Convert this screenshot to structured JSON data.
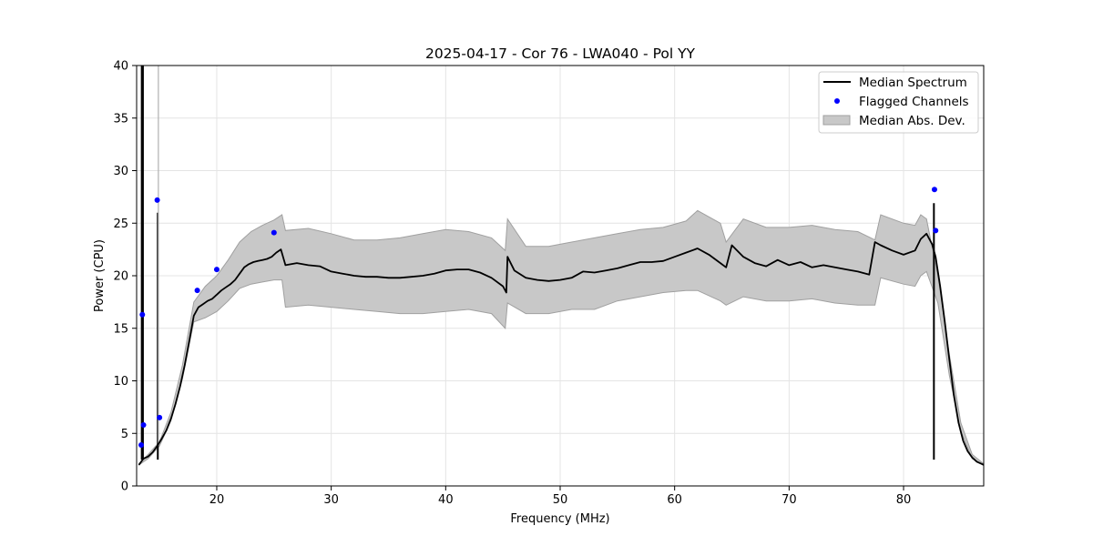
{
  "chart_data": {
    "type": "line",
    "title": "2025-04-17 - Cor 76 - LWA040 - Pol YY",
    "xlabel": "Frequency (MHz)",
    "ylabel": "Power (CPU)",
    "xlim": [
      13.0,
      87.0
    ],
    "ylim": [
      0,
      40
    ],
    "xticks": [
      20,
      30,
      40,
      50,
      60,
      70,
      80
    ],
    "yticks": [
      0,
      5,
      10,
      15,
      20,
      25,
      30,
      35,
      40
    ],
    "grid": true,
    "legend_position": "top-right",
    "colors": {
      "median": "#000000",
      "flagged": "#0000ff",
      "mad_fill": "#c8c8c8",
      "mad_edge": "#a0a0a0"
    },
    "series": [
      {
        "name": "Median Spectrum",
        "x": [
          13.2,
          13.4,
          13.6,
          14.0,
          14.4,
          14.8,
          15.2,
          15.6,
          16.0,
          16.4,
          16.8,
          17.2,
          17.6,
          18.0,
          18.4,
          18.8,
          19.2,
          19.6,
          20.0,
          20.4,
          20.8,
          21.2,
          21.6,
          22.0,
          22.4,
          22.8,
          23.2,
          23.6,
          24.0,
          24.4,
          24.8,
          25.2,
          25.6,
          26.0,
          27.0,
          28.0,
          29.0,
          30.0,
          31.0,
          32.0,
          33.0,
          34.0,
          35.0,
          36.0,
          37.0,
          38.0,
          39.0,
          40.0,
          41.0,
          42.0,
          43.0,
          44.0,
          45.0,
          45.3,
          45.4,
          46.0,
          47.0,
          48.0,
          49.0,
          50.0,
          51.0,
          52.0,
          53.0,
          54.0,
          55.0,
          56.0,
          57.0,
          58.0,
          59.0,
          60.0,
          61.0,
          62.0,
          63.0,
          64.0,
          64.5,
          65.0,
          66.0,
          67.0,
          68.0,
          69.0,
          70.0,
          71.0,
          72.0,
          73.0,
          74.0,
          75.0,
          76.0,
          77.0,
          77.5,
          78.0,
          79.0,
          80.0,
          81.0,
          81.5,
          82.0,
          82.5,
          82.8,
          83.2,
          83.6,
          84.0,
          84.4,
          84.8,
          85.2,
          85.6,
          86.0,
          86.4,
          86.8,
          87.0
        ],
        "y": [
          2.0,
          2.3,
          2.6,
          2.8,
          3.2,
          3.8,
          4.5,
          5.3,
          6.4,
          7.8,
          9.5,
          11.5,
          13.8,
          16.2,
          17.0,
          17.3,
          17.6,
          17.8,
          18.2,
          18.6,
          18.9,
          19.2,
          19.6,
          20.2,
          20.8,
          21.1,
          21.3,
          21.4,
          21.5,
          21.6,
          21.8,
          22.2,
          22.5,
          21.0,
          21.2,
          21.0,
          20.9,
          20.4,
          20.2,
          20.0,
          19.9,
          19.9,
          19.8,
          19.8,
          19.9,
          20.0,
          20.2,
          20.5,
          20.6,
          20.6,
          20.3,
          19.8,
          19.0,
          18.4,
          21.8,
          20.5,
          19.8,
          19.6,
          19.5,
          19.6,
          19.8,
          20.4,
          20.3,
          20.5,
          20.7,
          21.0,
          21.3,
          21.3,
          21.4,
          21.8,
          22.2,
          22.6,
          22.0,
          21.2,
          20.8,
          22.9,
          21.8,
          21.2,
          20.9,
          21.5,
          21.0,
          21.3,
          20.8,
          21.0,
          20.8,
          20.6,
          20.4,
          20.1,
          23.2,
          22.9,
          22.4,
          22.0,
          22.4,
          23.5,
          24.0,
          23.0,
          21.8,
          19.0,
          15.6,
          12.0,
          8.6,
          6.0,
          4.3,
          3.3,
          2.7,
          2.3,
          2.1,
          2.0
        ]
      },
      {
        "name": "Flagged Channels",
        "x": [
          13.4,
          13.5,
          13.6,
          14.8,
          15.0,
          18.3,
          20.0,
          25.0,
          82.7,
          82.8
        ],
        "y": [
          3.9,
          16.3,
          5.8,
          27.2,
          6.5,
          18.6,
          20.6,
          24.1,
          28.2,
          24.3
        ]
      },
      {
        "name": "Median Abs. Dev.",
        "x": [
          13.2,
          14.0,
          15.0,
          16.0,
          17.0,
          18.0,
          19.0,
          20.0,
          21.0,
          22.0,
          23.0,
          24.0,
          25.0,
          25.7,
          26.0,
          28.0,
          30.0,
          32.0,
          34.0,
          36.0,
          38.0,
          40.0,
          42.0,
          44.0,
          45.2,
          45.4,
          47.0,
          49.0,
          51.0,
          53.0,
          55.0,
          57.0,
          59.0,
          61.0,
          62.0,
          64.0,
          64.5,
          66.0,
          68.0,
          70.0,
          72.0,
          74.0,
          76.0,
          77.5,
          78.0,
          80.0,
          81.0,
          81.5,
          82.0,
          83.0,
          84.0,
          85.0,
          86.0,
          87.0
        ],
        "upper": [
          2.1,
          3.0,
          4.2,
          7.0,
          11.5,
          17.5,
          19.0,
          20.0,
          21.5,
          23.2,
          24.2,
          24.8,
          25.3,
          25.8,
          24.3,
          24.5,
          24.0,
          23.4,
          23.4,
          23.6,
          24.0,
          24.4,
          24.2,
          23.6,
          22.4,
          25.4,
          22.8,
          22.8,
          23.2,
          23.6,
          24.0,
          24.4,
          24.6,
          25.2,
          26.2,
          25.0,
          23.2,
          25.4,
          24.6,
          24.6,
          24.8,
          24.4,
          24.2,
          23.4,
          25.8,
          25.0,
          24.8,
          25.8,
          25.4,
          20.0,
          12.5,
          6.0,
          3.0,
          2.1
        ],
        "lower": [
          2.0,
          2.6,
          3.8,
          6.2,
          10.2,
          15.6,
          16.0,
          16.6,
          17.6,
          18.8,
          19.2,
          19.4,
          19.6,
          19.6,
          17.0,
          17.2,
          17.0,
          16.8,
          16.6,
          16.4,
          16.4,
          16.6,
          16.8,
          16.4,
          15.0,
          17.4,
          16.4,
          16.4,
          16.8,
          16.8,
          17.6,
          18.0,
          18.4,
          18.6,
          18.6,
          17.6,
          17.2,
          18.0,
          17.6,
          17.6,
          17.8,
          17.4,
          17.2,
          17.2,
          19.8,
          19.2,
          19.0,
          20.0,
          20.4,
          17.4,
          10.5,
          5.2,
          2.6,
          2.0
        ]
      }
    ],
    "spikes": [
      {
        "x": 13.45,
        "y_top": 40
      },
      {
        "x": 13.55,
        "y_top": 40
      },
      {
        "x": 14.85,
        "y_top": 26.0
      },
      {
        "x": 82.65,
        "y_top": 26.9
      }
    ]
  }
}
